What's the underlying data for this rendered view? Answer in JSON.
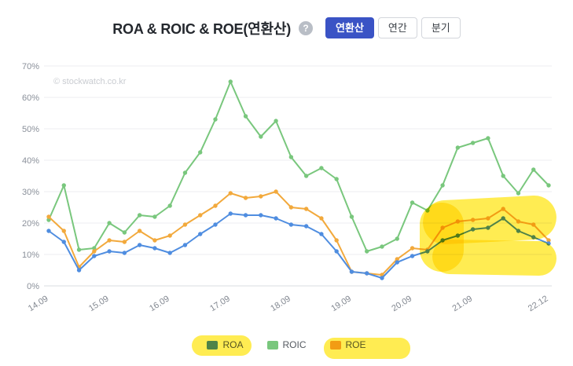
{
  "header": {
    "title": "ROA & ROIC & ROE(연환산)",
    "help_icon": "?",
    "accent_color": "#3a53c5",
    "view_buttons": [
      {
        "label": "연환산",
        "active": true
      },
      {
        "label": "연간",
        "active": false
      },
      {
        "label": "분기",
        "active": false
      }
    ]
  },
  "watermark": "© stockwatch.co.kr",
  "chart_data": {
    "type": "line",
    "title": "ROA & ROIC & ROE(연환산)",
    "x": [
      "14.09",
      "14.12",
      "15.03",
      "15.06",
      "15.09",
      "15.12",
      "16.03",
      "16.06",
      "16.09",
      "16.12",
      "17.03",
      "17.06",
      "17.09",
      "17.12",
      "18.03",
      "18.06",
      "18.09",
      "18.12",
      "19.03",
      "19.06",
      "19.09",
      "19.12",
      "20.03",
      "20.06",
      "20.09",
      "20.12",
      "21.03",
      "21.06",
      "21.09",
      "21.12",
      "22.03",
      "22.06",
      "22.09",
      "22.12"
    ],
    "x_axis_ticks": [
      {
        "index": 0,
        "label": "14.09"
      },
      {
        "index": 4,
        "label": "15.09"
      },
      {
        "index": 8,
        "label": "16.09"
      },
      {
        "index": 12,
        "label": "17.09"
      },
      {
        "index": 16,
        "label": "18.09"
      },
      {
        "index": 20,
        "label": "19.09"
      },
      {
        "index": 24,
        "label": "20.09"
      },
      {
        "index": 28,
        "label": "21.09"
      },
      {
        "index": 33,
        "label": "22.12"
      }
    ],
    "ylim": [
      0,
      70
    ],
    "y_tick_step": 10,
    "y_tick_suffix": "%",
    "grid": true,
    "legend_position": "bottom",
    "series": [
      {
        "name": "ROA",
        "color": "#4f8de0",
        "values": [
          17.5,
          14,
          5,
          9.5,
          11,
          10.5,
          13,
          12,
          10.5,
          13,
          16.5,
          19.5,
          23,
          22.5,
          22.5,
          21.5,
          19.5,
          19,
          16.5,
          11,
          4.5,
          4,
          2.5,
          7.5,
          9.5,
          11,
          14.5,
          16,
          18,
          18.5,
          21.5,
          17.5,
          15.5,
          13.5
        ]
      },
      {
        "name": "ROIC",
        "color": "#79c77d",
        "values": [
          21,
          32,
          11.5,
          12,
          20,
          17,
          22.5,
          22,
          25.5,
          36,
          42.5,
          53,
          65,
          54,
          47.5,
          52.5,
          41,
          35,
          37.5,
          34,
          22,
          11,
          12.5,
          15,
          26.5,
          24,
          32,
          44,
          45.5,
          47,
          35,
          29.5,
          37,
          32
        ]
      },
      {
        "name": "ROE",
        "color": "#f2a93c",
        "values": [
          22,
          17.5,
          6,
          11,
          14.5,
          14,
          17.5,
          14.5,
          16,
          19.5,
          22.5,
          25.5,
          29.5,
          28,
          28.5,
          30,
          25,
          24.5,
          21.5,
          14.5,
          4.5,
          4,
          3.5,
          8.5,
          12,
          11.5,
          18.5,
          20.5,
          21,
          21.5,
          24.5,
          20.5,
          19.5,
          14.5
        ]
      }
    ]
  },
  "annotations": {
    "highlighter_color": "#ffe933",
    "note": "freehand yellow highlighter strokes over the 21.09-22.12 region of the chart and over the ROA and ROE legend items"
  }
}
